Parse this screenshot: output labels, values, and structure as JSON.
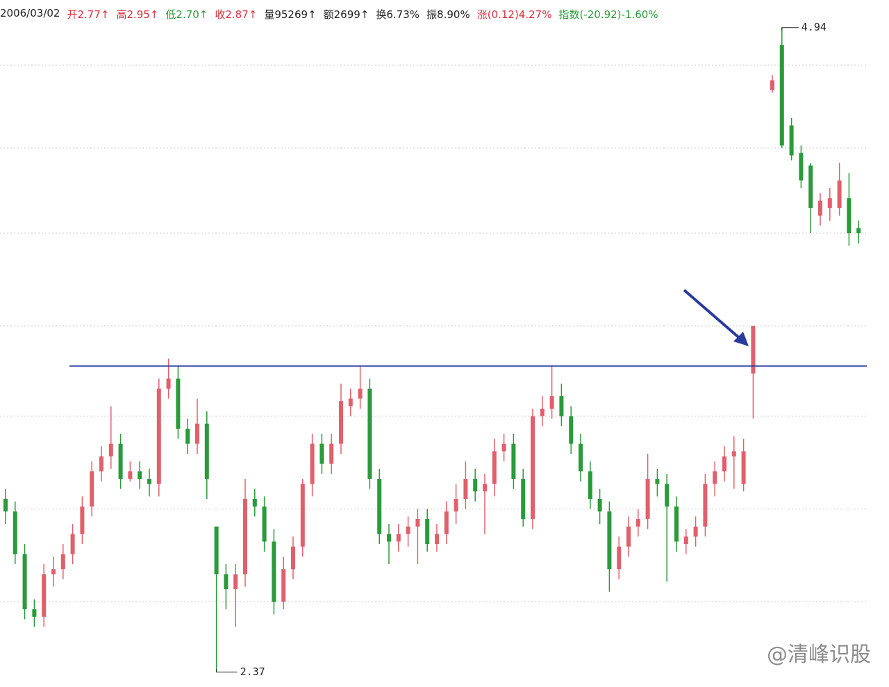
{
  "chart_data": {
    "type": "candlestick",
    "info_bar": [
      {
        "text": "2006/03/02",
        "color": "#222"
      },
      {
        "text": "开2.77↑",
        "color": "#d9303e"
      },
      {
        "text": "高2.95↑",
        "color": "#d9303e"
      },
      {
        "text": "低2.70↑",
        "color": "#2a9a3a"
      },
      {
        "text": "收2.87↑",
        "color": "#d9303e"
      },
      {
        "text": "量95269↑",
        "color": "#222"
      },
      {
        "text": "额2699↑",
        "color": "#222"
      },
      {
        "text": "换6.73%",
        "color": "#222"
      },
      {
        "text": "振8.90%",
        "color": "#222"
      },
      {
        "text": "涨(0.12)4.27%",
        "color": "#d9303e"
      },
      {
        "text": "指数(-20.92)-1.60%",
        "color": "#2a9a3a"
      }
    ],
    "watermark": "@清峰识股",
    "up_color": "#e0606c",
    "down_color": "#2a9a3a",
    "resistance_line": 3.59,
    "resistance_color": "#2b3a9e",
    "ylim": [
      2.31,
      5.05
    ],
    "yticks": [
      2.65,
      3.02,
      3.39,
      3.75,
      4.12,
      4.46,
      4.79
    ],
    "grid": true,
    "categories": [
      null,
      null,
      null,
      null,
      null,
      null,
      null,
      null,
      null,
      null,
      null,
      null,
      null,
      null,
      null,
      null,
      null,
      null,
      null,
      null,
      null,
      null,
      null,
      null,
      null,
      null,
      null,
      null,
      null,
      null,
      null,
      null,
      null,
      null,
      null,
      null,
      null,
      null,
      null,
      null,
      null,
      null,
      null,
      null,
      null,
      null,
      null,
      null,
      null,
      null,
      null,
      null,
      null,
      null,
      null,
      null,
      null,
      null,
      null,
      null,
      null,
      null,
      null,
      null,
      null,
      null,
      null,
      null,
      null,
      null,
      null,
      null,
      null,
      null,
      null,
      null,
      null,
      null,
      null,
      null,
      null,
      null,
      null,
      null,
      null,
      null,
      null,
      null,
      null,
      null
    ],
    "open": [
      3.06,
      3.01,
      2.84,
      2.62,
      2.59,
      2.76,
      2.78,
      2.84,
      2.92,
      3.03,
      3.17,
      3.23,
      3.28,
      3.14,
      3.17,
      3.14,
      3.12,
      3.5,
      3.54,
      3.34,
      3.28,
      3.36,
      2.95,
      2.76,
      2.7,
      2.76,
      3.06,
      3.03,
      2.89,
      2.65,
      2.78,
      2.87,
      3.12,
      3.28,
      3.2,
      3.28,
      3.43,
      3.46,
      3.5,
      3.14,
      2.92,
      2.89,
      2.92,
      2.95,
      2.98,
      2.88,
      2.92,
      3.01,
      3.06,
      3.14,
      3.09,
      3.12,
      3.25,
      3.28,
      3.14,
      2.98,
      3.39,
      3.42,
      3.47,
      3.39,
      3.28,
      3.17,
      3.06,
      3.01,
      2.78,
      2.87,
      2.95,
      2.98,
      3.14,
      3.12,
      3.03,
      2.88,
      2.91,
      2.95,
      3.12,
      3.17,
      3.23,
      3.12,
      3.56,
      null,
      4.69,
      4.87,
      4.55,
      4.44,
      4.39,
      4.19,
      4.22,
      4.22,
      4.26,
      4.14
    ],
    "high": [
      3.1,
      3.05,
      2.88,
      2.66,
      2.8,
      2.83,
      2.88,
      2.96,
      3.07,
      3.21,
      3.27,
      3.43,
      3.32,
      3.21,
      3.21,
      3.18,
      3.54,
      3.62,
      3.59,
      3.38,
      3.46,
      3.41,
      2.95,
      2.8,
      2.8,
      3.14,
      3.1,
      3.07,
      2.94,
      2.83,
      2.91,
      3.14,
      3.32,
      3.32,
      3.32,
      3.52,
      3.5,
      3.59,
      3.54,
      3.18,
      2.96,
      2.96,
      2.99,
      3.02,
      3.02,
      2.96,
      3.05,
      3.12,
      3.21,
      3.18,
      3.16,
      3.3,
      3.32,
      3.32,
      3.18,
      3.42,
      3.47,
      3.59,
      3.52,
      3.43,
      3.32,
      3.21,
      3.1,
      3.05,
      2.91,
      2.99,
      3.02,
      3.24,
      3.18,
      3.16,
      3.07,
      2.94,
      2.99,
      3.16,
      3.21,
      3.27,
      3.31,
      3.3,
      3.75,
      null,
      4.75,
      4.94,
      4.58,
      4.47,
      4.4,
      4.28,
      4.3,
      4.4,
      4.36,
      4.17
    ],
    "low": [
      2.96,
      2.8,
      2.58,
      2.55,
      2.55,
      2.71,
      2.74,
      2.8,
      2.88,
      2.99,
      3.13,
      3.18,
      3.1,
      3.13,
      3.1,
      3.07,
      3.07,
      3.46,
      3.3,
      3.24,
      3.24,
      3.06,
      2.37,
      2.62,
      2.55,
      2.71,
      2.99,
      2.85,
      2.6,
      2.62,
      2.74,
      2.83,
      3.07,
      3.16,
      3.16,
      3.24,
      3.39,
      3.42,
      3.1,
      2.88,
      2.8,
      2.85,
      2.87,
      2.8,
      2.85,
      2.85,
      2.88,
      2.96,
      3.02,
      3.05,
      2.92,
      3.07,
      3.21,
      3.1,
      2.95,
      2.94,
      3.35,
      3.38,
      3.35,
      3.24,
      3.13,
      3.02,
      2.96,
      2.69,
      2.74,
      2.83,
      2.91,
      2.94,
      3.07,
      2.73,
      2.85,
      2.84,
      2.87,
      2.91,
      3.07,
      3.13,
      3.1,
      3.09,
      3.38,
      null,
      4.68,
      4.46,
      4.41,
      4.3,
      4.12,
      4.15,
      4.17,
      4.19,
      4.07,
      4.08
    ],
    "close": [
      3.01,
      2.84,
      2.62,
      2.59,
      2.76,
      2.78,
      2.84,
      2.92,
      3.03,
      3.17,
      3.23,
      3.28,
      3.14,
      3.17,
      3.14,
      3.12,
      3.5,
      3.54,
      3.34,
      3.28,
      3.36,
      3.14,
      2.76,
      2.7,
      2.76,
      3.06,
      3.03,
      2.89,
      2.65,
      2.78,
      2.87,
      3.12,
      3.28,
      3.2,
      3.28,
      3.45,
      3.46,
      3.5,
      3.14,
      2.92,
      2.89,
      2.92,
      2.95,
      2.98,
      2.88,
      2.92,
      3.01,
      3.06,
      3.14,
      3.09,
      3.12,
      3.25,
      3.28,
      3.14,
      2.98,
      3.39,
      3.42,
      3.47,
      3.39,
      3.28,
      3.17,
      3.06,
      3.01,
      2.78,
      2.87,
      2.95,
      2.98,
      3.14,
      3.12,
      3.03,
      2.89,
      2.91,
      2.95,
      3.12,
      3.17,
      3.23,
      3.25,
      3.25,
      3.75,
      null,
      4.73,
      4.47,
      4.43,
      4.33,
      4.22,
      4.25,
      4.26,
      4.33,
      4.12,
      4.12
    ]
  }
}
